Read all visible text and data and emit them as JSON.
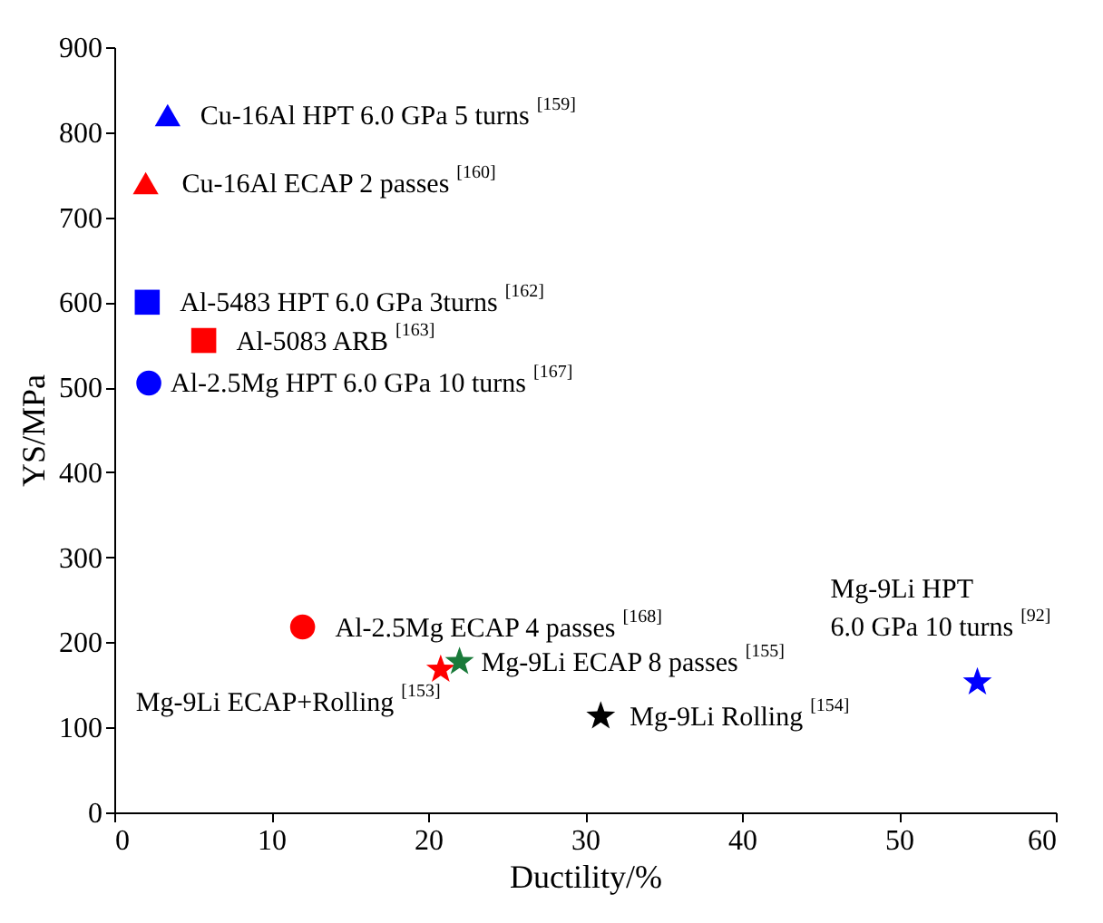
{
  "chart_data": {
    "type": "scatter",
    "xlabel": "Ductility/%",
    "ylabel": "YS/MPa",
    "xlim": [
      0,
      60
    ],
    "xticks": [
      0,
      10,
      20,
      30,
      40,
      50,
      60
    ],
    "ylim": [
      0,
      900
    ],
    "yticks": [
      0,
      100,
      200,
      300,
      400,
      500,
      600,
      700,
      800,
      900
    ],
    "grid": false,
    "series": [
      {
        "name": "Cu-16Al HPT 6.0 GPa 5 turns $^{[159]}$",
        "color": "#0000ff",
        "marker": "triangle",
        "x": [
          3.4
        ],
        "values": [
          820
        ]
      },
      {
        "name": "Cu-16Al ECAP 2 passes $^{[160]}$",
        "color": "#ff0000",
        "marker": "triangle",
        "x": [
          2.0
        ],
        "values": [
          740
        ]
      },
      {
        "name": "Al-5483 HPT 6.0 GPa 3turns $^{[162]}$",
        "color": "#0000ff",
        "marker": "square",
        "x": [
          2.1
        ],
        "values": [
          600
        ]
      },
      {
        "name": "Al-5083 ARB $^{[163]}$",
        "color": "#ff0000",
        "marker": "square",
        "x": [
          5.7
        ],
        "values": [
          555
        ]
      },
      {
        "name": "Al-2.5Mg HPT 6.0 GPa 10 turns $^{[167]}$",
        "color": "#0000ff",
        "marker": "circle",
        "x": [
          2.2
        ],
        "values": [
          505
        ]
      },
      {
        "name": "Al-2.5Mg ECAP 4 passes $^{[168]}$",
        "color": "#ff0000",
        "marker": "circle",
        "x": [
          12
        ],
        "values": [
          218
        ]
      },
      {
        "name": "Mg-9Li ECAP+Rolling $^{[153]}$",
        "color": "#ff0000",
        "marker": "star",
        "x": [
          20.8
        ],
        "values": [
          168
        ]
      },
      {
        "name": "Mg-9Li ECAP 8 passes $^{[155]}$",
        "color": "#1a7a3a",
        "marker": "star",
        "x": [
          22
        ],
        "values": [
          177
        ]
      },
      {
        "name": "Mg-9Li Rolling $^{[154]}$",
        "color": "#000000",
        "marker": "star",
        "x": [
          31
        ],
        "values": [
          113
        ]
      },
      {
        "name": "Mg-9Li HPT 6.0 GPa 10 turns $^{[92]}$",
        "color": "#0000ff",
        "marker": "star",
        "x": [
          55
        ],
        "values": [
          153
        ]
      }
    ]
  }
}
